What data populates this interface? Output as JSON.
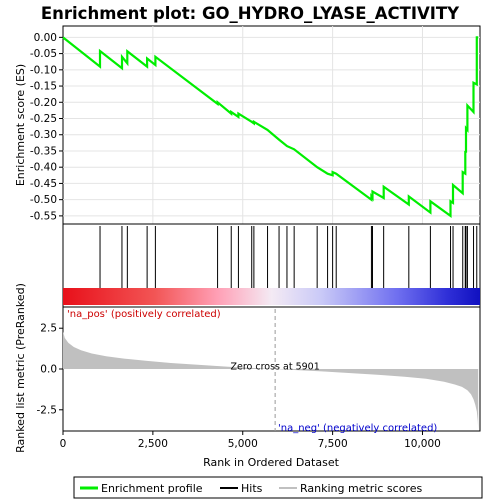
{
  "chart_data": [
    {
      "type": "line",
      "title": "Enrichment plot: GO_HYDRO_LYASE_ACTIVITY",
      "ylabel": "Enrichment score (ES)",
      "xlim": [
        0,
        11600
      ],
      "ylim": [
        -0.575,
        0.035
      ],
      "yticks": [
        0.0,
        -0.05,
        -0.1,
        -0.15,
        -0.2,
        -0.25,
        -0.3,
        -0.35,
        -0.4,
        -0.45,
        -0.5,
        -0.55
      ],
      "ytick_labels": [
        "0.00",
        "-0.05",
        "-0.10",
        "-0.15",
        "-0.20",
        "-0.25",
        "-0.30",
        "-0.35",
        "-0.40",
        "-0.45",
        "-0.50",
        "-0.55"
      ],
      "grid": true,
      "series": [
        {
          "name": "Enrichment profile",
          "color": "#00ee00",
          "x": [
            0,
            1030,
            1030,
            1640,
            1640,
            1790,
            1790,
            2340,
            2340,
            2570,
            2570,
            4300,
            4300,
            4680,
            4680,
            4880,
            4880,
            5250,
            5250,
            5310,
            5310,
            5690,
            5690,
            6010,
            6010,
            6230,
            6230,
            6430,
            6430,
            7070,
            7070,
            7360,
            7360,
            7500,
            7500,
            7600,
            7600,
            8580,
            8580,
            8610,
            8610,
            8920,
            8920,
            9620,
            9620,
            10220,
            10220,
            10780,
            10780,
            10850,
            10850,
            11120,
            11120,
            11190,
            11190,
            11210,
            11210,
            11250,
            11250,
            11420,
            11420,
            11510,
            11510,
            11550
          ],
          "y": [
            0.0,
            -0.09,
            -0.042,
            -0.095,
            -0.06,
            -0.08,
            -0.043,
            -0.09,
            -0.065,
            -0.085,
            -0.06,
            -0.205,
            -0.2,
            -0.235,
            -0.23,
            -0.245,
            -0.235,
            -0.26,
            -0.26,
            -0.265,
            -0.26,
            -0.285,
            -0.285,
            -0.315,
            -0.315,
            -0.335,
            -0.335,
            -0.345,
            -0.345,
            -0.4,
            -0.4,
            -0.42,
            -0.42,
            -0.425,
            -0.415,
            -0.42,
            -0.42,
            -0.5,
            -0.49,
            -0.495,
            -0.475,
            -0.495,
            -0.46,
            -0.515,
            -0.49,
            -0.54,
            -0.505,
            -0.55,
            -0.505,
            -0.51,
            -0.455,
            -0.48,
            -0.415,
            -0.42,
            -0.35,
            -0.355,
            -0.28,
            -0.285,
            -0.21,
            -0.23,
            -0.14,
            -0.145,
            0.0,
            0.0
          ]
        }
      ]
    },
    {
      "type": "scatter",
      "name": "hits",
      "xlim": [
        0,
        11600
      ],
      "hit_positions": [
        1030,
        1640,
        1790,
        2340,
        2570,
        4300,
        4680,
        4880,
        5250,
        5310,
        5690,
        6010,
        6230,
        6430,
        7070,
        7360,
        7500,
        7600,
        8580,
        8610,
        8920,
        9620,
        10220,
        10780,
        10850,
        11120,
        11190,
        11210,
        11250,
        11420,
        11510
      ],
      "legend": [
        {
          "name": "Enrichment profile",
          "color": "#00ee00"
        },
        {
          "name": "Hits",
          "color": "#000000"
        },
        {
          "name": "Ranking metric scores",
          "color": "#c0c0c0"
        }
      ]
    },
    {
      "type": "area",
      "xlabel": "Rank in Ordered Dataset",
      "ylabel": "Ranked list metric (PreRanked)",
      "xlim": [
        0,
        11600
      ],
      "ylim": [
        -3.8,
        3.8
      ],
      "xticks": [
        0,
        2500,
        5000,
        7500,
        10000
      ],
      "xtick_labels": [
        "0",
        "2,500",
        "5,000",
        "7,500",
        "10,000"
      ],
      "yticks": [
        2.5,
        0.0,
        -2.5
      ],
      "ytick_labels": [
        "2.5",
        "0.0",
        "-2.5"
      ],
      "x": [
        0,
        50,
        150,
        300,
        500,
        800,
        1200,
        1700,
        2300,
        3000,
        3800,
        4600,
        5300,
        5901,
        6500,
        7200,
        8000,
        8800,
        9500,
        10100,
        10600,
        10900,
        11100,
        11250,
        11350,
        11420,
        11470,
        11510,
        11540,
        11550
      ],
      "values": [
        2.3,
        1.9,
        1.6,
        1.35,
        1.15,
        0.95,
        0.78,
        0.64,
        0.5,
        0.37,
        0.25,
        0.14,
        0.06,
        0.0,
        -0.07,
        -0.15,
        -0.25,
        -0.36,
        -0.48,
        -0.6,
        -0.78,
        -0.95,
        -1.1,
        -1.3,
        -1.55,
        -1.85,
        -2.2,
        -2.6,
        -3.2,
        -3.7
      ],
      "fill": "#c0c0c0",
      "annotations": {
        "zero_cross": {
          "text": "Zero cross at 5901",
          "x": 5901
        },
        "pos": {
          "text": "'na_pos' (positively correlated)",
          "color": "#cc0000"
        },
        "neg": {
          "text": "'na_neg' (negatively correlated)",
          "color": "#0000cc"
        }
      }
    }
  ]
}
